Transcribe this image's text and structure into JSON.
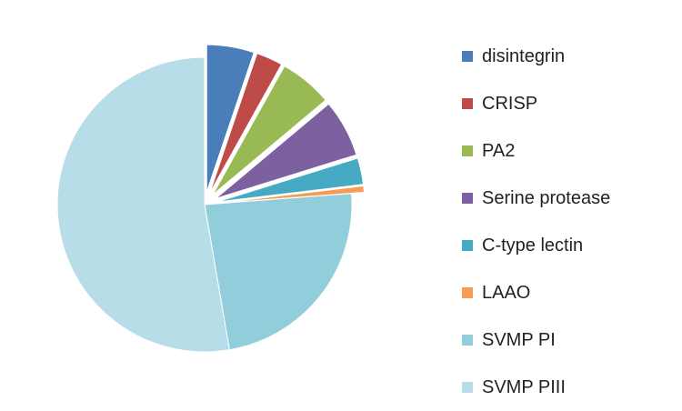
{
  "chart_data": {
    "type": "pie",
    "title": "",
    "legend_position": "right",
    "slices": [
      {
        "label": "disintegrin",
        "value": 5.2,
        "color": "#4A7EBB",
        "exploded": true
      },
      {
        "label": "CRISP",
        "value": 2.9,
        "color": "#BE4B48",
        "exploded": true
      },
      {
        "label": "PA2",
        "value": 5.8,
        "color": "#98B954",
        "exploded": true
      },
      {
        "label": "Serine protease",
        "value": 6.3,
        "color": "#7D60A0",
        "exploded": true
      },
      {
        "label": "C-type lectin",
        "value": 2.9,
        "color": "#46AAC5",
        "exploded": true
      },
      {
        "label": "LAAO",
        "value": 0.7,
        "color": "#F59D56",
        "exploded": true
      },
      {
        "label": "SVMP PI",
        "value": 23.5,
        "color": "#92CDDC",
        "exploded": false
      },
      {
        "label": "SVMP PIII",
        "value": 52.7,
        "color": "#B7DEE8",
        "exploded": false
      }
    ]
  }
}
